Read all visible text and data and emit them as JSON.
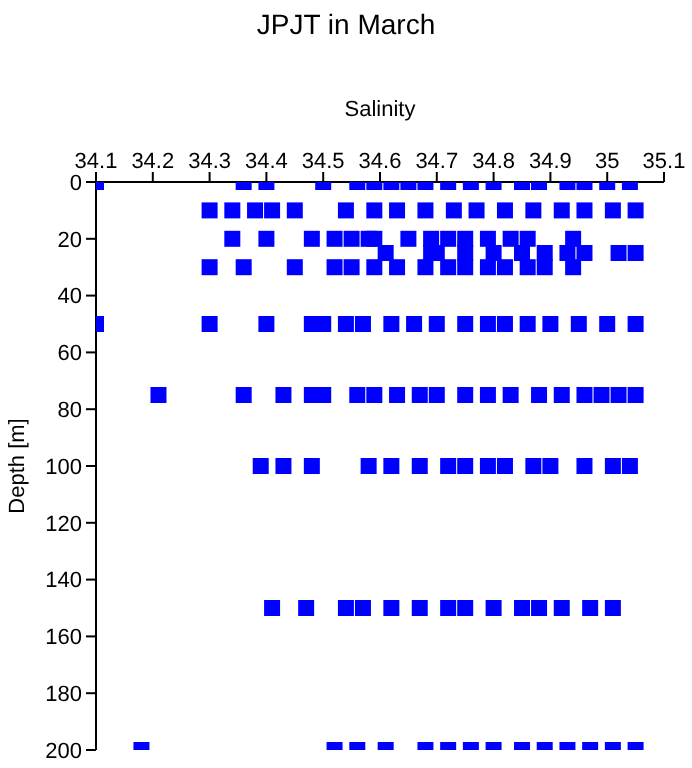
{
  "chart_data": {
    "type": "scatter",
    "title": "JPJT in March",
    "xlabel": "Salinity",
    "ylabel": "Depth [m]",
    "marker": "square",
    "grid": false,
    "legend": false,
    "xlim": [
      34.1,
      35.1
    ],
    "xticks": [
      34.1,
      34.2,
      34.3,
      34.4,
      34.5,
      34.6,
      34.7,
      34.8,
      34.9,
      35,
      35.1
    ],
    "ylim": [
      200,
      0
    ],
    "yticks": [
      0,
      20,
      40,
      60,
      80,
      100,
      120,
      140,
      160,
      180,
      200
    ],
    "series": [
      {
        "color": "#0000ff",
        "x": [
          34.1,
          34.36,
          34.4,
          34.5,
          34.56,
          34.59,
          34.62,
          34.65,
          34.68,
          34.72,
          34.76,
          34.8,
          34.85,
          34.88,
          34.93,
          34.96,
          35.0,
          35.04,
          34.3,
          34.34,
          34.38,
          34.41,
          34.45,
          34.54,
          34.59,
          34.63,
          34.68,
          34.73,
          34.77,
          34.82,
          34.87,
          34.92,
          34.96,
          35.01,
          35.05,
          34.34,
          34.4,
          34.48,
          34.52,
          34.55,
          34.58,
          34.59,
          34.65,
          34.69,
          34.72,
          34.75,
          34.79,
          34.83,
          34.86,
          34.94,
          34.61,
          34.69,
          34.7,
          34.75,
          34.8,
          34.85,
          34.89,
          34.93,
          34.96,
          35.02,
          35.05,
          34.3,
          34.36,
          34.45,
          34.52,
          34.55,
          34.59,
          34.63,
          34.68,
          34.72,
          34.75,
          34.79,
          34.82,
          34.86,
          34.89,
          34.94,
          34.1,
          34.3,
          34.4,
          34.48,
          34.5,
          34.54,
          34.57,
          34.62,
          34.66,
          34.7,
          34.75,
          34.79,
          34.82,
          34.86,
          34.9,
          34.95,
          35.0,
          35.05,
          34.21,
          34.36,
          34.43,
          34.48,
          34.5,
          34.56,
          34.59,
          34.63,
          34.67,
          34.7,
          34.75,
          34.79,
          34.83,
          34.88,
          34.92,
          34.96,
          34.99,
          35.02,
          35.05,
          34.39,
          34.43,
          34.48,
          34.58,
          34.62,
          34.67,
          34.72,
          34.75,
          34.79,
          34.82,
          34.87,
          34.9,
          34.96,
          35.01,
          35.04,
          34.41,
          34.47,
          34.54,
          34.57,
          34.62,
          34.67,
          34.72,
          34.75,
          34.8,
          34.85,
          34.88,
          34.92,
          34.97,
          35.01,
          34.18,
          34.52,
          34.56,
          34.61,
          34.68,
          34.72,
          34.76,
          34.8,
          34.85,
          34.89,
          34.93,
          34.97,
          35.01,
          35.05
        ],
        "values": [
          0,
          0,
          0,
          0,
          0,
          0,
          0,
          0,
          0,
          0,
          0,
          0,
          0,
          0,
          0,
          0,
          0,
          0,
          10,
          10,
          10,
          10,
          10,
          10,
          10,
          10,
          10,
          10,
          10,
          10,
          10,
          10,
          10,
          10,
          10,
          20,
          20,
          20,
          20,
          20,
          20,
          20,
          20,
          20,
          20,
          20,
          20,
          20,
          20,
          20,
          25,
          25,
          25,
          25,
          25,
          25,
          25,
          25,
          25,
          25,
          25,
          30,
          30,
          30,
          30,
          30,
          30,
          30,
          30,
          30,
          30,
          30,
          30,
          30,
          30,
          30,
          50,
          50,
          50,
          50,
          50,
          50,
          50,
          50,
          50,
          50,
          50,
          50,
          50,
          50,
          50,
          50,
          50,
          50,
          75,
          75,
          75,
          75,
          75,
          75,
          75,
          75,
          75,
          75,
          75,
          75,
          75,
          75,
          75,
          75,
          75,
          75,
          75,
          100,
          100,
          100,
          100,
          100,
          100,
          100,
          100,
          100,
          100,
          100,
          100,
          100,
          100,
          100,
          150,
          150,
          150,
          150,
          150,
          150,
          150,
          150,
          150,
          150,
          150,
          150,
          150,
          150,
          200,
          200,
          200,
          200,
          200,
          200,
          200,
          200,
          200,
          200,
          200,
          200,
          200,
          200
        ]
      }
    ]
  }
}
